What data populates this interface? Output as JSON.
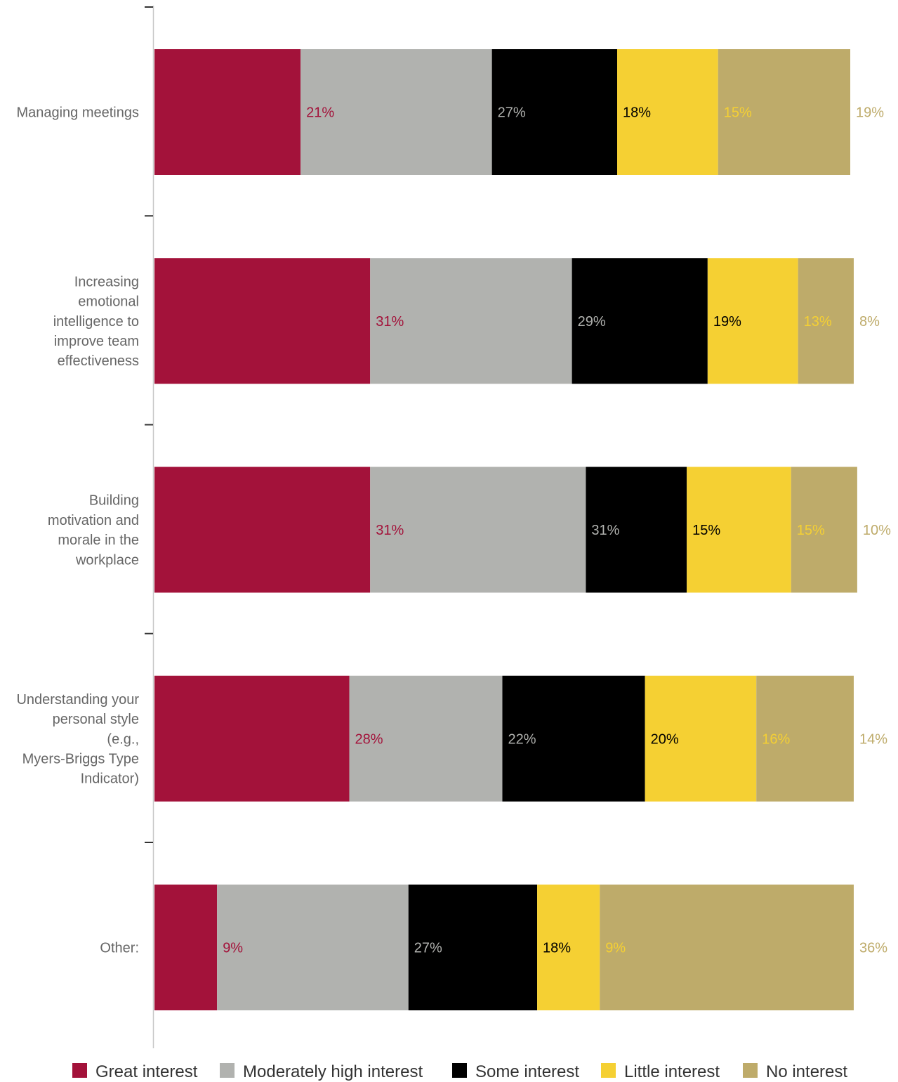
{
  "chart_data": {
    "type": "bar",
    "orientation": "horizontal",
    "stacked": true,
    "categories": [
      [
        "Managing meetings"
      ],
      [
        "Increasing",
        "emotional",
        "intelligence to",
        "improve team",
        "effectiveness"
      ],
      [
        "Building",
        "motivation and",
        "morale in the",
        "workplace"
      ],
      [
        "Understanding your",
        "personal style",
        "(e.g.,",
        "Myers-Briggs Type",
        "Indicator)"
      ],
      [
        "Other:"
      ]
    ],
    "series": [
      {
        "name": "Great interest",
        "color": "#A3123A",
        "labels": [
          "21%",
          "31%",
          "31%",
          "28%",
          "9%"
        ]
      },
      {
        "name": "Moderately high interest",
        "color": "#B1B2AF",
        "labels": [
          "27%",
          "29%",
          "31%",
          "22%",
          "27%"
        ]
      },
      {
        "name": "Some interest",
        "color": "#000000",
        "labels": [
          "18%",
          "19%",
          "15%",
          "20%",
          "18%"
        ]
      },
      {
        "name": "Little interest",
        "color": "#F5D033",
        "labels": [
          "15%",
          "13%",
          "15%",
          "16%",
          "9%"
        ]
      },
      {
        "name": "No interest",
        "color": "#BEAB6A",
        "labels": [
          "19%",
          "8%",
          "10%",
          "14%",
          "36%"
        ]
      }
    ],
    "segment_widths": [
      [
        21,
        27.5,
        18,
        14.5,
        19
      ],
      [
        31,
        29,
        19.5,
        13,
        8
      ],
      [
        31,
        31,
        14.5,
        15,
        9.5
      ],
      [
        28,
        22,
        20.5,
        16,
        14
      ],
      [
        9,
        27.5,
        18.5,
        9,
        36.5
      ]
    ],
    "label_colors": [
      "#A3123A",
      "#B1B2AF",
      "#000000",
      "#F5D033",
      "#BEAB6A"
    ],
    "xlim": [
      0,
      100
    ],
    "legend_position": "bottom"
  }
}
